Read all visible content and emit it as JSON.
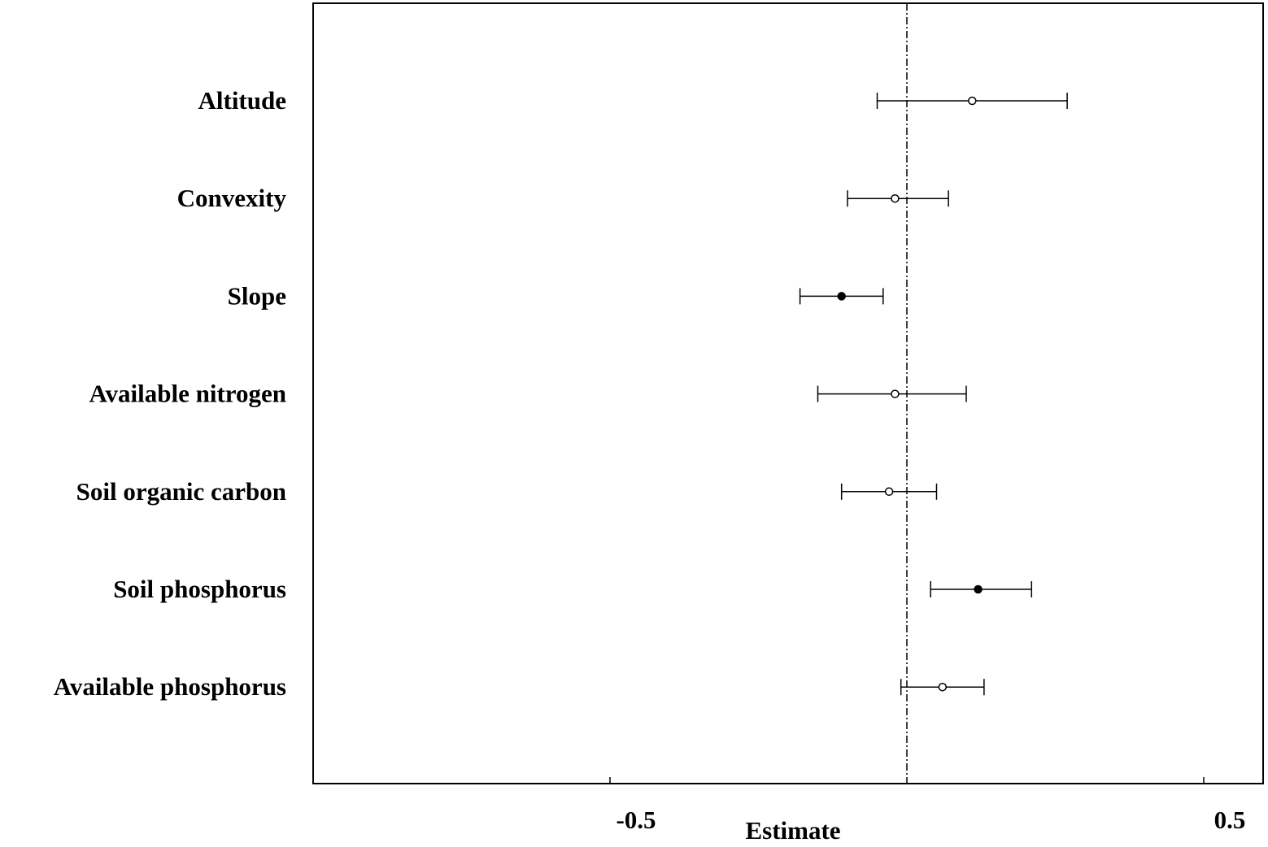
{
  "chart_data": {
    "type": "scatter",
    "subtype": "forest-plot",
    "xlabel": "Estimate",
    "ylabel": "",
    "title": "",
    "xlim": [
      -1.0,
      0.6
    ],
    "x_ticks": [
      {
        "value": -0.5,
        "label": "-0.5"
      },
      {
        "value": 0.5,
        "label": "0.5"
      }
    ],
    "reference_line": {
      "x": 0,
      "style": "dash-dot"
    },
    "grid": false,
    "legend": "none",
    "colors": {
      "axis": "#000000",
      "filled_marker": "#000000",
      "open_marker_fill": "#ffffff"
    },
    "variables": [
      {
        "label": "Altitude",
        "estimate": 0.11,
        "lower": -0.05,
        "upper": 0.27,
        "significant": false
      },
      {
        "label": "Convexity",
        "estimate": -0.02,
        "lower": -0.1,
        "upper": 0.07,
        "significant": false
      },
      {
        "label": "Slope",
        "estimate": -0.11,
        "lower": -0.18,
        "upper": -0.04,
        "significant": true
      },
      {
        "label": "Available nitrogen",
        "estimate": -0.02,
        "lower": -0.15,
        "upper": 0.1,
        "significant": false
      },
      {
        "label": "Soil organic carbon",
        "estimate": -0.03,
        "lower": -0.11,
        "upper": 0.05,
        "significant": false
      },
      {
        "label": "Soil phosphorus",
        "estimate": 0.12,
        "lower": 0.04,
        "upper": 0.21,
        "significant": true
      },
      {
        "label": "Available phosphorus",
        "estimate": 0.06,
        "lower": -0.01,
        "upper": 0.13,
        "significant": false
      }
    ]
  }
}
